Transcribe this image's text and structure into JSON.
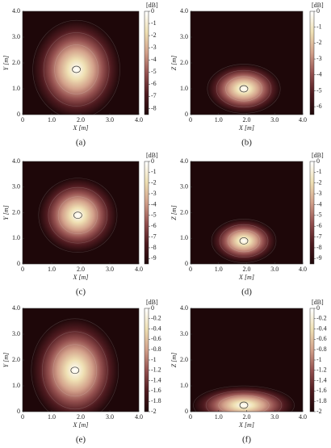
{
  "chart_data": [
    {
      "type": "heatmap",
      "caption": "(a)",
      "xlabel": "X [m]",
      "ylabel": "Y [m]",
      "xlim": [
        0,
        4
      ],
      "ylim": [
        0,
        4
      ],
      "xticks": [
        0,
        {
          "value": 1,
          "label": "1.0"
        },
        {
          "value": 2,
          "label": "2.0"
        },
        {
          "value": 3,
          "label": "3.0"
        },
        {
          "value": 4,
          "label": "4.0"
        }
      ],
      "yticks": [
        0,
        {
          "value": 1,
          "label": "1.0"
        },
        {
          "value": 2,
          "label": "2.0"
        },
        {
          "value": 3,
          "label": "3.0"
        },
        {
          "value": 4,
          "label": "4.0"
        }
      ],
      "colorbar_label": "[dB]",
      "clim": [
        -8.5,
        0
      ],
      "cticks": [
        0,
        -1,
        -2,
        -3,
        -4,
        -5,
        -6,
        -7,
        -8
      ],
      "colormap": [
        "#1e0709",
        "#4e1a1f",
        "#94504f",
        "#d2a08a",
        "#efe0b3",
        "#ffffff"
      ]
    },
    {
      "type": "heatmap",
      "caption": "(b)",
      "xlabel": "X [m]",
      "ylabel": "Z [m]",
      "xlim": [
        0,
        4
      ],
      "ylim": [
        0,
        4
      ],
      "xticks": [
        0,
        {
          "value": 1,
          "label": "1.0"
        },
        {
          "value": 2,
          "label": "2.0"
        },
        {
          "value": 3,
          "label": "3.0"
        },
        {
          "value": 4,
          "label": "4.0"
        }
      ],
      "yticks": [
        0,
        {
          "value": 1,
          "label": "1.0"
        },
        {
          "value": 2,
          "label": "2.0"
        },
        {
          "value": 3,
          "label": "3.0"
        },
        {
          "value": 4,
          "label": "4.0"
        }
      ],
      "colorbar_label": "[dB]",
      "clim": [
        -6.5,
        0
      ],
      "cticks": [
        0,
        -1,
        -2,
        -3,
        -4,
        -5,
        -6
      ],
      "colormap": [
        "#1e0709",
        "#4e1a1f",
        "#94504f",
        "#d2a08a",
        "#efe0b3",
        "#ffffff"
      ]
    },
    {
      "type": "heatmap",
      "caption": "(c)",
      "xlabel": "X [m]",
      "ylabel": "Y [m]",
      "xlim": [
        0,
        4
      ],
      "ylim": [
        0,
        4
      ],
      "xticks": [
        0,
        {
          "value": 1,
          "label": "1.0"
        },
        {
          "value": 2,
          "label": "2.0"
        },
        {
          "value": 3,
          "label": "3.0"
        },
        {
          "value": 4,
          "label": "4.0"
        }
      ],
      "yticks": [
        0,
        {
          "value": 1,
          "label": "1.0"
        },
        {
          "value": 2,
          "label": "2.0"
        },
        {
          "value": 3,
          "label": "3.0"
        },
        {
          "value": 4,
          "label": "4.0"
        }
      ],
      "colorbar_label": "[dB]",
      "clim": [
        -9.5,
        0
      ],
      "cticks": [
        0,
        -1,
        -2,
        -3,
        -4,
        -5,
        -6,
        -7,
        -8,
        -9
      ],
      "colormap": [
        "#1e0709",
        "#4e1a1f",
        "#94504f",
        "#d2a08a",
        "#efe0b3",
        "#ffffff"
      ]
    },
    {
      "type": "heatmap",
      "caption": "(d)",
      "xlabel": "X [m]",
      "ylabel": "Z [m]",
      "xlim": [
        0,
        4
      ],
      "ylim": [
        0,
        4
      ],
      "xticks": [
        0,
        {
          "value": 1,
          "label": "1.0"
        },
        {
          "value": 2,
          "label": "2.0"
        },
        {
          "value": 3,
          "label": "3.0"
        },
        {
          "value": 4,
          "label": "4.0"
        }
      ],
      "yticks": [
        0,
        {
          "value": 1,
          "label": "1.0"
        },
        {
          "value": 2,
          "label": "2.0"
        },
        {
          "value": 3,
          "label": "3.0"
        },
        {
          "value": 4,
          "label": "4.0"
        }
      ],
      "colorbar_label": "[dB]",
      "clim": [
        -9.5,
        0
      ],
      "cticks": [
        0,
        -1,
        -2,
        -3,
        -4,
        -5,
        -6,
        -7,
        -8,
        -9
      ],
      "colormap": [
        "#1e0709",
        "#4e1a1f",
        "#94504f",
        "#d2a08a",
        "#efe0b3",
        "#ffffff"
      ]
    },
    {
      "type": "heatmap",
      "caption": "(e)",
      "xlabel": "X [m]",
      "ylabel": "Y [m]",
      "xlim": [
        0,
        4
      ],
      "ylim": [
        0,
        4
      ],
      "xticks": [
        0,
        {
          "value": 1,
          "label": "1.0"
        },
        {
          "value": 2,
          "label": "2.0"
        },
        {
          "value": 3,
          "label": "3.0"
        },
        {
          "value": 4,
          "label": "4.0"
        }
      ],
      "yticks": [
        0,
        {
          "value": 1,
          "label": "1.0"
        },
        {
          "value": 2,
          "label": "2.0"
        },
        {
          "value": 3,
          "label": "3.0"
        },
        {
          "value": 4,
          "label": "4.0"
        }
      ],
      "colorbar_label": "[dB]",
      "clim": [
        -2,
        0
      ],
      "cticks": [
        0,
        -0.2,
        -0.4,
        -0.6,
        -0.8,
        -1,
        -1.2,
        -1.4,
        -1.6,
        -1.8,
        -2
      ],
      "colormap": [
        "#1e0709",
        "#4e1a1f",
        "#94504f",
        "#d2a08a",
        "#efe0b3",
        "#ffffff"
      ]
    },
    {
      "type": "heatmap",
      "caption": "(f)",
      "xlabel": "X [m]",
      "ylabel": "Z [m]",
      "xlim": [
        0,
        4
      ],
      "ylim": [
        0,
        4
      ],
      "xticks": [
        0,
        {
          "value": 1,
          "label": "1.0"
        },
        {
          "value": 2,
          "label": "2.0"
        },
        {
          "value": 3,
          "label": "3.0"
        },
        {
          "value": 4,
          "label": "4.0"
        }
      ],
      "yticks": [
        0,
        {
          "value": 1,
          "label": "1.0"
        },
        {
          "value": 2,
          "label": "2.0"
        },
        {
          "value": 3,
          "label": "3.0"
        },
        {
          "value": 4,
          "label": "4.0"
        }
      ],
      "colorbar_label": "[dB]",
      "clim": [
        -2,
        0
      ],
      "cticks": [
        0,
        -0.2,
        -0.4,
        -0.6,
        -0.8,
        -1,
        -1.2,
        -1.4,
        -1.6,
        -1.8,
        -2
      ],
      "colormap": [
        "#1e0709",
        "#4e1a1f",
        "#94504f",
        "#d2a08a",
        "#efe0b3",
        "#ffffff"
      ]
    }
  ]
}
